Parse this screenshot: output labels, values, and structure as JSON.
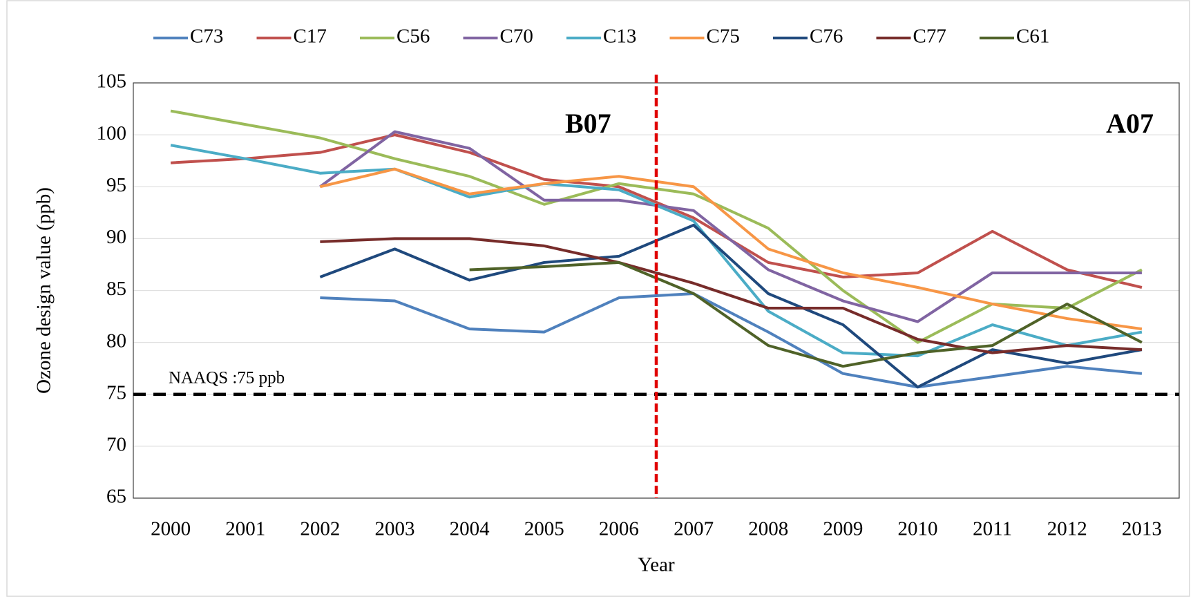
{
  "chart_data": {
    "type": "line",
    "y_axis_label": "Ozone design value (ppb)",
    "x_axis_label": "Year",
    "categories": [
      "2000",
      "2001",
      "2002",
      "2003",
      "2004",
      "2005",
      "2006",
      "2007",
      "2008",
      "2009",
      "2010",
      "2011",
      "2012",
      "2013"
    ],
    "ylim": [
      65,
      105
    ],
    "yticks": [
      65,
      70,
      75,
      80,
      85,
      90,
      95,
      100,
      105
    ],
    "grid": true,
    "legend": "top",
    "annotations": [
      "B07",
      "A07"
    ],
    "reference_line": {
      "value": 75,
      "label": "NAAQS :75 ppb"
    },
    "series": [
      {
        "name": "C73",
        "color": "#4f81bd",
        "values": [
          null,
          null,
          84.3,
          84,
          81.3,
          81,
          84.3,
          84.7,
          81,
          77,
          75.7,
          76.7,
          77.7,
          77
        ]
      },
      {
        "name": "C17",
        "color": "#c0504d",
        "values": [
          97.3,
          97.7,
          98.3,
          100,
          98.3,
          95.7,
          95,
          92,
          87.7,
          86.3,
          86.7,
          90.7,
          87,
          85.3
        ]
      },
      {
        "name": "C56",
        "color": "#9bbb59",
        "values": [
          102.3,
          101,
          99.7,
          97.7,
          96,
          93.3,
          95.3,
          94.3,
          91,
          85,
          80,
          83.7,
          83.3,
          87
        ]
      },
      {
        "name": "C70",
        "color": "#8064a2",
        "values": [
          null,
          null,
          95,
          100.3,
          98.7,
          93.7,
          93.7,
          92.7,
          87,
          84,
          82,
          86.7,
          86.7,
          86.7
        ]
      },
      {
        "name": "C13",
        "color": "#4bacc6",
        "values": [
          99,
          97.7,
          96.3,
          96.7,
          94,
          95.3,
          94.7,
          91.7,
          83,
          79,
          78.7,
          81.7,
          79.7,
          81
        ]
      },
      {
        "name": "C75",
        "color": "#f79646",
        "values": [
          null,
          null,
          95,
          96.7,
          94.3,
          95.3,
          96,
          95,
          89,
          86.7,
          85.3,
          83.7,
          82.3,
          81.3
        ]
      },
      {
        "name": "C76",
        "color": "#1f497d",
        "values": [
          null,
          null,
          86.3,
          89,
          86,
          87.7,
          88.3,
          91.3,
          84.7,
          81.7,
          75.7,
          79.3,
          78,
          79.3
        ]
      },
      {
        "name": "C77",
        "color": "#772c2a",
        "values": [
          null,
          null,
          89.7,
          90,
          90,
          89.3,
          87.7,
          85.7,
          83.3,
          83.3,
          80.3,
          79,
          79.7,
          79.3
        ]
      },
      {
        "name": "C61",
        "color": "#4f6228",
        "values": [
          null,
          null,
          null,
          null,
          87,
          87.3,
          87.7,
          84.7,
          79.7,
          77.7,
          79,
          79.7,
          83.7,
          80
        ]
      }
    ]
  }
}
